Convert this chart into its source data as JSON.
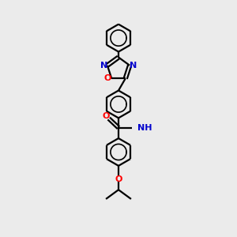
{
  "bg_color": "#ebebeb",
  "bond_color": "#000000",
  "n_color": "#0000cd",
  "o_color": "#ff0000",
  "lw": 1.6,
  "xlim": [
    0,
    10
  ],
  "ylim": [
    0,
    14
  ],
  "figsize": [
    3.0,
    3.0
  ],
  "dpi": 100
}
